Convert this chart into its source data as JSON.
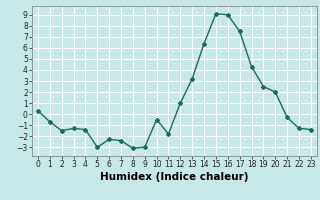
{
  "x": [
    0,
    1,
    2,
    3,
    4,
    5,
    6,
    7,
    8,
    9,
    10,
    11,
    12,
    13,
    14,
    15,
    16,
    17,
    18,
    19,
    20,
    21,
    22,
    23
  ],
  "y": [
    0.3,
    -0.7,
    -1.5,
    -1.3,
    -1.4,
    -3.0,
    -2.3,
    -2.4,
    -3.1,
    -3.0,
    -0.5,
    -1.8,
    1.0,
    3.2,
    6.4,
    9.1,
    9.0,
    7.5,
    4.3,
    2.5,
    2.0,
    -0.3,
    -1.3,
    -1.4
  ],
  "line_color": "#1a6b5a",
  "marker": "D",
  "marker_size": 2.0,
  "bg_color": "#c8e8e8",
  "grid_color": "#ffffff",
  "xlabel": "Humidex (Indice chaleur)",
  "xlim": [
    -0.5,
    23.5
  ],
  "ylim": [
    -3.8,
    9.8
  ],
  "yticks": [
    -3,
    -2,
    -1,
    0,
    1,
    2,
    3,
    4,
    5,
    6,
    7,
    8,
    9
  ],
  "xticks": [
    0,
    1,
    2,
    3,
    4,
    5,
    6,
    7,
    8,
    9,
    10,
    11,
    12,
    13,
    14,
    15,
    16,
    17,
    18,
    19,
    20,
    21,
    22,
    23
  ],
  "tick_fontsize": 5.5,
  "xlabel_fontsize": 7.5,
  "linewidth": 1.0
}
